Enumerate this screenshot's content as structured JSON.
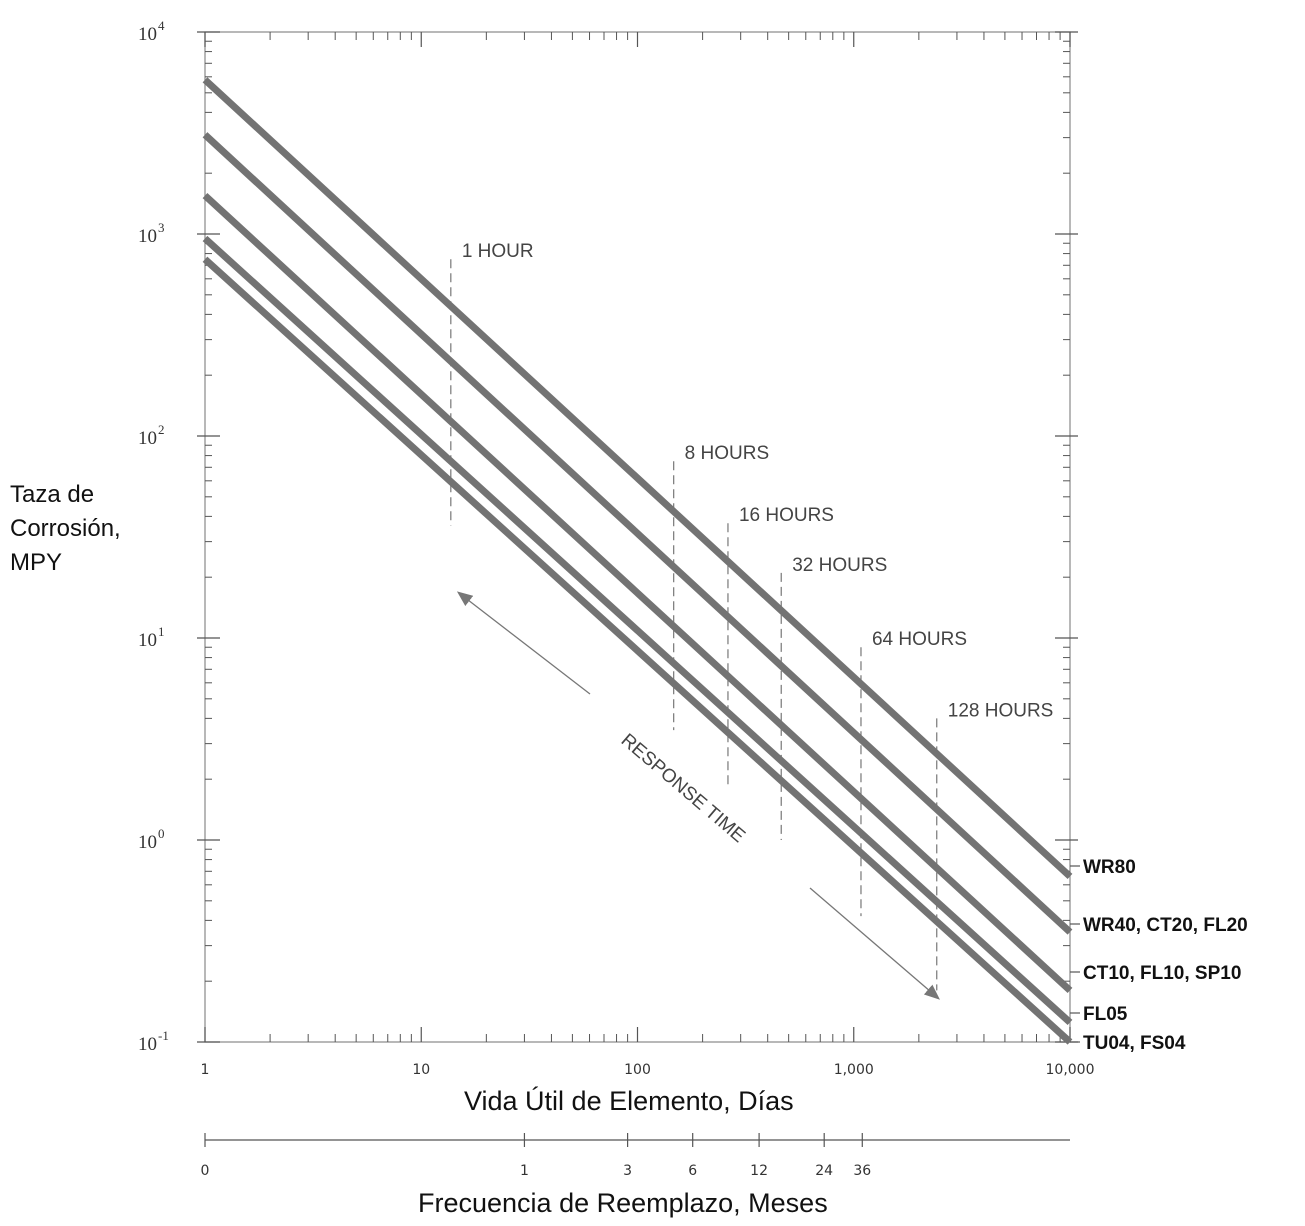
{
  "chart_data": {
    "type": "line",
    "x_scale": "log",
    "y_scale": "log",
    "xlim": [
      1,
      10000
    ],
    "ylim": [
      0.1,
      10000
    ],
    "xlabel": "Vida Útil de Elemento, Días",
    "ylabel": [
      "Taza de",
      "Corrosión,",
      "MPY"
    ],
    "x_ticks": [
      {
        "value": 1,
        "label": "1"
      },
      {
        "value": 10,
        "label": "10"
      },
      {
        "value": 100,
        "label": "100"
      },
      {
        "value": 1000,
        "label": "1,000"
      },
      {
        "value": 10000,
        "label": "10,000"
      }
    ],
    "y_ticks": [
      {
        "value": 10000,
        "base": "10",
        "exp": "4"
      },
      {
        "value": 1000,
        "base": "10",
        "exp": "3"
      },
      {
        "value": 100,
        "base": "10",
        "exp": "2"
      },
      {
        "value": 10,
        "base": "10",
        "exp": "1"
      },
      {
        "value": 1,
        "base": "10",
        "exp": "0"
      },
      {
        "value": 0.1,
        "base": "10",
        "exp": "-1"
      }
    ],
    "secondary_x_axis": {
      "label": "Frecuencia de Reemplazo, Meses",
      "ticks": [
        {
          "days": 1,
          "label": "0"
        },
        {
          "days": 30,
          "label": "1"
        },
        {
          "days": 90,
          "label": "3"
        },
        {
          "days": 180,
          "label": "6"
        },
        {
          "days": 365,
          "label": "12"
        },
        {
          "days": 730,
          "label": "24"
        },
        {
          "days": 1095,
          "label": "36"
        }
      ]
    },
    "series": [
      {
        "name": "WR80",
        "x": [
          1,
          10000
        ],
        "y": [
          5800,
          0.66
        ]
      },
      {
        "name": "WR40, CT20, FL20",
        "x": [
          1,
          10000
        ],
        "y": [
          3100,
          0.35
        ]
      },
      {
        "name": "CT10, FL10, SP10",
        "x": [
          1,
          10000
        ],
        "y": [
          1550,
          0.18
        ]
      },
      {
        "name": "FL05",
        "x": [
          1,
          10000
        ],
        "y": [
          950,
          0.125
        ]
      },
      {
        "name": "TU04, FS04",
        "x": [
          1,
          10000
        ],
        "y": [
          750,
          0.1
        ]
      }
    ],
    "response_times": [
      {
        "label": "1 HOUR",
        "x": 13.7,
        "y_top": 750,
        "y_bottom": 36
      },
      {
        "label": "8 HOURS",
        "x": 147,
        "y_top": 75,
        "y_bottom": 3.5
      },
      {
        "label": "16 HOURS",
        "x": 262,
        "y_top": 37,
        "y_bottom": 1.8
      },
      {
        "label": "32 HOURS",
        "x": 462,
        "y_top": 21,
        "y_bottom": 1.0
      },
      {
        "label": "64 HOURS",
        "x": 1080,
        "y_top": 9,
        "y_bottom": 0.42
      },
      {
        "label": "128 HOURS",
        "x": 2420,
        "y_top": 4,
        "y_bottom": 0.18
      }
    ],
    "annotation": "RESPONSE TIME",
    "colors": {
      "series": "#737373",
      "axes": "#555555",
      "dashed": "#777777"
    }
  }
}
